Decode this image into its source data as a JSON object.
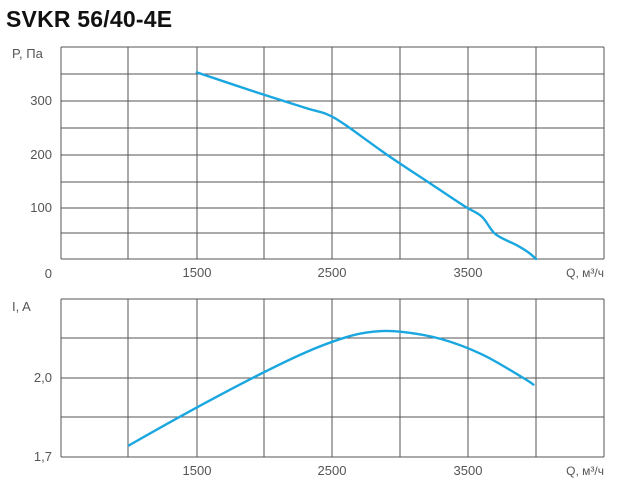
{
  "chart_data": [
    {
      "type": "line",
      "title": "SVKR 56/40-4E",
      "ylabel": "P, Па",
      "xlabel": "Q, м³/ч",
      "x_ticks": [
        "1500",
        "2500",
        "3500"
      ],
      "y_ticks": [
        "0",
        "100",
        "200",
        "300"
      ],
      "xlim": [
        600,
        4600
      ],
      "ylim": [
        0,
        400
      ],
      "grid": true,
      "series": [
        {
          "color": "#1aa7e0",
          "points": [
            [
              1600,
              352
            ],
            [
              2000,
              318
            ],
            [
              2400,
              285
            ],
            [
              2560,
              273
            ],
            [
              2700,
              252
            ],
            [
              3000,
              197
            ],
            [
              3300,
              146
            ],
            [
              3570,
              100
            ],
            [
              3700,
              80
            ],
            [
              3800,
              47
            ],
            [
              3950,
              27
            ],
            [
              4040,
              13
            ],
            [
              4100,
              0
            ]
          ]
        }
      ]
    },
    {
      "type": "line",
      "title": "",
      "ylabel": "I, A",
      "xlabel": "Q, м³/ч",
      "x_ticks": [
        "1500",
        "2500",
        "3500"
      ],
      "y_ticks": [
        "1,7",
        "2,0"
      ],
      "xlim": [
        600,
        4600
      ],
      "ylim": [
        1.7,
        2.3
      ],
      "grid": true,
      "series": [
        {
          "color": "#1aa7e0",
          "points": [
            [
              1100,
              1.744
            ],
            [
              1500,
              1.86
            ],
            [
              2000,
              1.997
            ],
            [
              2400,
              2.097
            ],
            [
              2700,
              2.155
            ],
            [
              2900,
              2.176
            ],
            [
              3100,
              2.176
            ],
            [
              3400,
              2.148
            ],
            [
              3700,
              2.09
            ],
            [
              4000,
              2.002
            ],
            [
              4080,
              1.975
            ]
          ]
        }
      ]
    }
  ]
}
